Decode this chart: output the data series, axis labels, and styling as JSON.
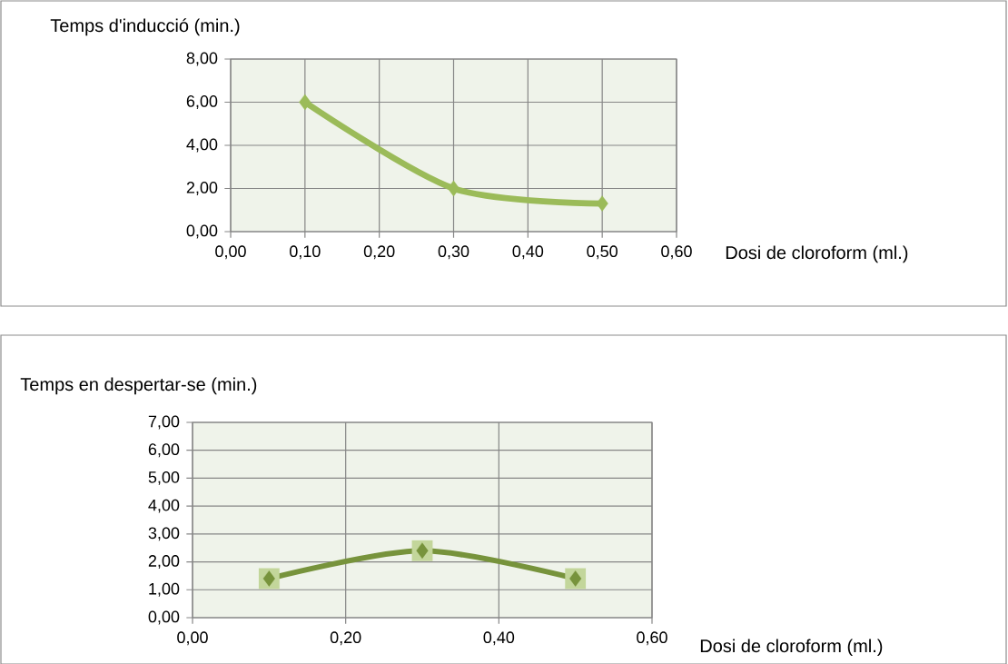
{
  "chart_data": [
    {
      "type": "line",
      "ylabel": "Temps d'inducció (min.)",
      "xlabel": "Dosi  de cloroform (ml.)",
      "x": [
        0.1,
        0.3,
        0.5
      ],
      "series": [
        {
          "color": "#9bbb59",
          "values": [
            6,
            2,
            1.3
          ],
          "marker": "diamond"
        }
      ],
      "xlim": [
        0,
        0.6
      ],
      "xticks": [
        {
          "value": 0,
          "label": "0,00"
        },
        {
          "value": 0.1,
          "label": "0,10"
        },
        {
          "value": 0.2,
          "label": "0,20"
        },
        {
          "value": 0.3,
          "label": "0,30"
        },
        {
          "value": 0.4,
          "label": "0,40"
        },
        {
          "value": 0.5,
          "label": "0,50"
        },
        {
          "value": 0.6,
          "label": "0,60"
        }
      ],
      "ylim": [
        0,
        8
      ],
      "yticks": [
        {
          "value": 0,
          "label": "0,00"
        },
        {
          "value": 2,
          "label": "2,00"
        },
        {
          "value": 4,
          "label": "4,00"
        },
        {
          "value": 6,
          "label": "6,00"
        },
        {
          "value": 8,
          "label": "8,00"
        }
      ],
      "grid": true,
      "line_style": "solid"
    },
    {
      "type": "line",
      "ylabel": "Temps en despertar-se  (min.)",
      "xlabel": "Dosi  de cloroform (ml.)",
      "x": [
        0.1,
        0.3,
        0.5
      ],
      "series": [
        {
          "type": "scatter",
          "color": "#c3d69b",
          "values": [
            1.4,
            2.4,
            1.4
          ],
          "marker": "square"
        },
        {
          "type": "line",
          "color": "#77933c",
          "values": [
            1.4,
            2.4,
            1.4
          ],
          "marker": "diamond"
        }
      ],
      "xlim": [
        0,
        0.6
      ],
      "xticks": [
        {
          "value": 0,
          "label": "0,00"
        },
        {
          "value": 0.2,
          "label": "0,20"
        },
        {
          "value": 0.4,
          "label": "0,40"
        },
        {
          "value": 0.6,
          "label": "0,60"
        }
      ],
      "ylim": [
        0,
        7
      ],
      "yticks": [
        {
          "value": 0,
          "label": "0,00"
        },
        {
          "value": 1,
          "label": "1,00"
        },
        {
          "value": 2,
          "label": "2,00"
        },
        {
          "value": 3,
          "label": "3,00"
        },
        {
          "value": 4,
          "label": "4,00"
        },
        {
          "value": 5,
          "label": "5,00"
        },
        {
          "value": 6,
          "label": "6,00"
        },
        {
          "value": 7,
          "label": "7,00"
        }
      ],
      "grid": true,
      "line_style": "solid"
    }
  ]
}
